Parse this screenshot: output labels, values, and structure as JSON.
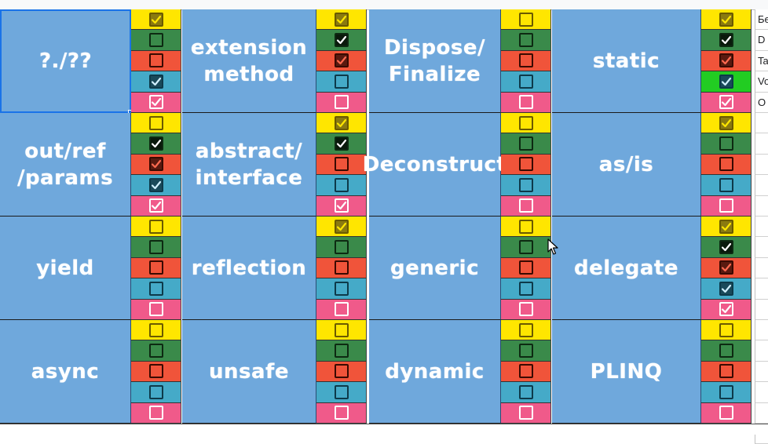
{
  "colors": {
    "topic_bg": "#6fa8dc",
    "row_yellow": "#ffe600",
    "row_green": "#3a8a4a",
    "row_red": "#f0543a",
    "row_teal": "#45aac8",
    "row_pink": "#f05a8a",
    "cell_vivid_green": "#22cc22",
    "selection": "#1a73e8"
  },
  "icons": {
    "checkbox_checked": "check-icon",
    "cursor": "mouse-pointer-icon"
  },
  "side_labels": [
    "Бе",
    "D",
    "Ta",
    "Vo",
    "O"
  ],
  "topics": [
    {
      "lines": [
        "?./??"
      ],
      "checks": [
        true,
        false,
        false,
        true,
        true
      ],
      "selected": true
    },
    {
      "lines": [
        "extension",
        "method"
      ],
      "checks": [
        true,
        true,
        true,
        false,
        false
      ]
    },
    {
      "lines": [
        "Dispose/",
        "Finalize"
      ],
      "checks": [
        false,
        false,
        false,
        false,
        false
      ]
    },
    {
      "lines": [
        "static"
      ],
      "checks": [
        true,
        true,
        true,
        true,
        true
      ],
      "vivid_green": true
    },
    {
      "lines": [
        "out/ref",
        "/params"
      ],
      "checks": [
        false,
        true,
        true,
        true,
        true
      ]
    },
    {
      "lines": [
        "abstract/",
        "interface"
      ],
      "checks": [
        true,
        true,
        false,
        false,
        true
      ]
    },
    {
      "lines": [
        "Deconstruct"
      ],
      "checks": [
        false,
        false,
        false,
        false,
        false
      ]
    },
    {
      "lines": [
        "as/is"
      ],
      "checks": [
        true,
        false,
        false,
        false,
        false
      ]
    },
    {
      "lines": [
        "yield"
      ],
      "checks": [
        false,
        false,
        false,
        false,
        false
      ]
    },
    {
      "lines": [
        "reflection"
      ],
      "checks": [
        true,
        false,
        false,
        false,
        false
      ]
    },
    {
      "lines": [
        "generic"
      ],
      "checks": [
        false,
        false,
        false,
        false,
        false
      ]
    },
    {
      "lines": [
        "delegate"
      ],
      "checks": [
        true,
        true,
        true,
        true,
        true
      ]
    },
    {
      "lines": [
        "async"
      ],
      "checks": [
        false,
        false,
        false,
        false,
        false
      ]
    },
    {
      "lines": [
        "unsafe"
      ],
      "checks": [
        false,
        false,
        false,
        false,
        false
      ]
    },
    {
      "lines": [
        "dynamic"
      ],
      "checks": [
        false,
        false,
        false,
        false,
        false
      ]
    },
    {
      "lines": [
        "PLINQ"
      ],
      "checks": [
        false,
        false,
        false,
        false,
        false
      ]
    }
  ]
}
